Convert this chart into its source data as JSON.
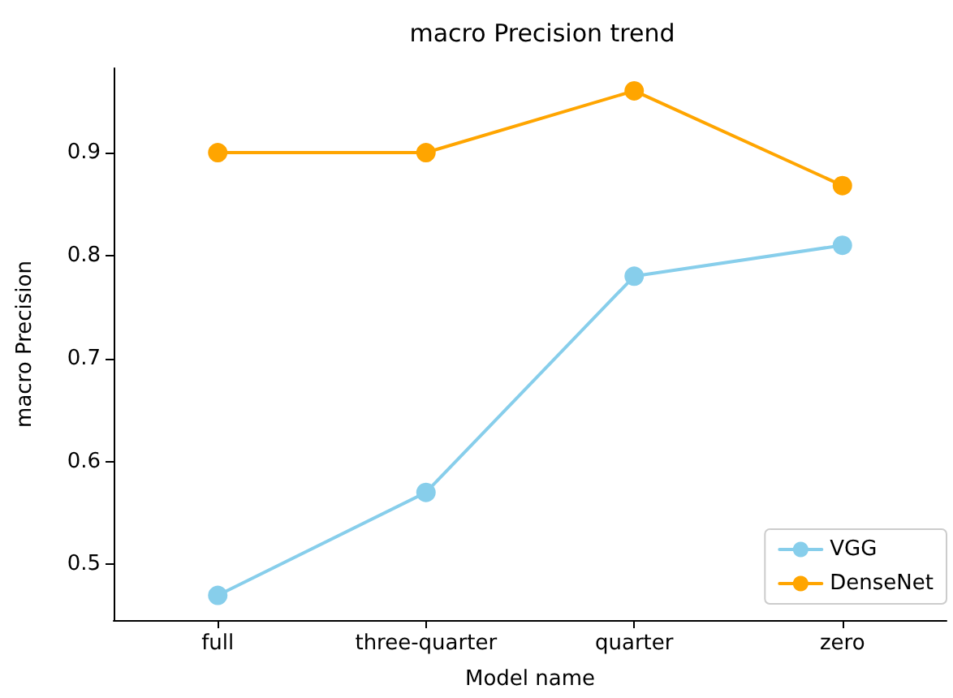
{
  "chart_data": {
    "type": "line",
    "title": "macro Precision trend",
    "xlabel": "Model name",
    "ylabel": "macro Precision",
    "categories": [
      "full",
      "three-quarter",
      "quarter",
      "zero"
    ],
    "series": [
      {
        "name": "VGG",
        "color": "#87ceeb",
        "values": [
          0.47,
          0.57,
          0.78,
          0.81
        ]
      },
      {
        "name": "DenseNet",
        "color": "#ffa500",
        "values": [
          0.9,
          0.9,
          0.96,
          0.868
        ]
      }
    ],
    "ylim": [
      0.446,
      0.982
    ],
    "yticks": [
      0.5,
      0.6,
      0.7,
      0.8,
      0.9
    ],
    "grid": false,
    "legend": "bottom right",
    "marker": "circle",
    "line_style": "solid"
  }
}
